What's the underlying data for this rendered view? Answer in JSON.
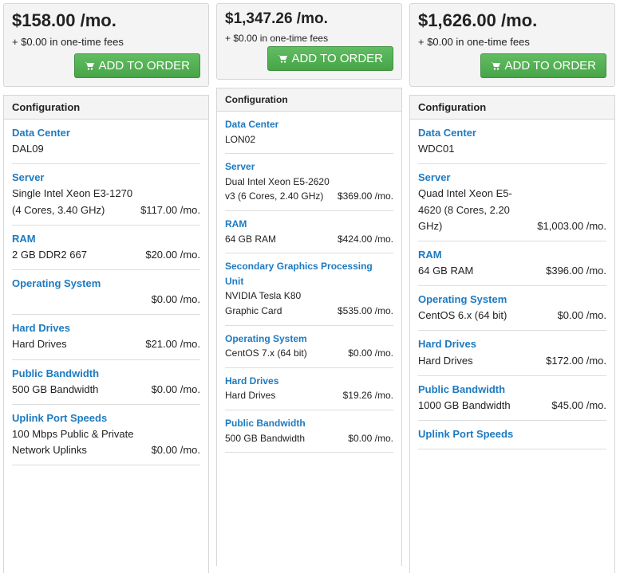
{
  "columns": [
    {
      "price": "$158.00 /mo.",
      "fees": "+ $0.00 in one-time fees",
      "button": "ADD TO ORDER",
      "config_title": "Configuration",
      "items": [
        {
          "label": "Data Center",
          "value": "DAL09"
        },
        {
          "label": "Server",
          "value": "Single Intel Xeon E3-1270 (4 Cores, 3.40 GHz)",
          "price": "$117.00 /mo."
        },
        {
          "label": "RAM",
          "value": "2 GB DDR2 667",
          "price": "$20.00 /mo."
        },
        {
          "label": "Operating System",
          "price": "$0.00 /mo."
        },
        {
          "label": "Hard Drives",
          "value": "Hard Drives",
          "price": "$21.00 /mo."
        },
        {
          "label": "Public Bandwidth",
          "value": "500 GB Bandwidth",
          "price": "$0.00 /mo."
        },
        {
          "label": "Uplink Port Speeds",
          "value": "100 Mbps Public & Private Network Uplinks",
          "price": "$0.00 /mo."
        }
      ]
    },
    {
      "price": "$1,347.26 /mo.",
      "fees": "+ $0.00 in one-time fees",
      "button": "ADD TO ORDER",
      "config_title": "Configuration",
      "items": [
        {
          "label": "Data Center",
          "value": "LON02"
        },
        {
          "label": "Server",
          "value": "Dual Intel Xeon E5-2620 v3 (6 Cores, 2.40 GHz)",
          "price": "$369.00 /mo."
        },
        {
          "label": "RAM",
          "value": "64 GB RAM",
          "price": "$424.00 /mo."
        },
        {
          "label": "Secondary Graphics Processing Unit",
          "value": "NVIDIA Tesla K80 Graphic Card",
          "price": "$535.00 /mo."
        },
        {
          "label": "Operating System",
          "value": "CentOS 7.x (64 bit)",
          "price": "$0.00 /mo."
        },
        {
          "label": "Hard Drives",
          "value": "Hard Drives",
          "price": "$19.26 /mo."
        },
        {
          "label": "Public Bandwidth",
          "value": "500 GB Bandwidth",
          "price": "$0.00 /mo."
        }
      ]
    },
    {
      "price": "$1,626.00 /mo.",
      "fees": "+ $0.00 in one-time fees",
      "button": "ADD TO ORDER",
      "config_title": "Configuration",
      "items": [
        {
          "label": "Data Center",
          "value": "WDC01"
        },
        {
          "label": "Server",
          "value": "Quad Intel Xeon E5-4620 (8 Cores, 2.20 GHz)",
          "price": "$1,003.00 /mo."
        },
        {
          "label": "RAM",
          "value": "64 GB RAM",
          "price": "$396.00 /mo."
        },
        {
          "label": "Operating System",
          "value": "CentOS 6.x (64 bit)",
          "price": "$0.00 /mo."
        },
        {
          "label": "Hard Drives",
          "value": "Hard Drives",
          "price": "$172.00 /mo."
        },
        {
          "label": "Public Bandwidth",
          "value": "1000 GB Bandwidth",
          "price": "$45.00 /mo."
        },
        {
          "label": "Uplink Port Speeds"
        }
      ]
    }
  ]
}
